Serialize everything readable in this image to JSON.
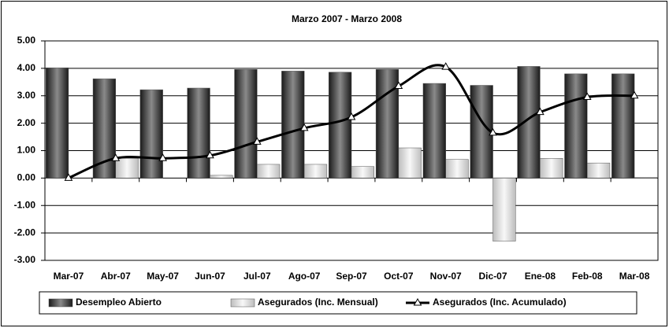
{
  "chart_data": {
    "type": "bar_line",
    "title": "Marzo 2007 - Marzo 2008",
    "categories": [
      "Mar-07",
      "Abr-07",
      "May-07",
      "Jun-07",
      "Jul-07",
      "Ago-07",
      "Sep-07",
      "Oct-07",
      "Nov-07",
      "Dic-07",
      "Ene-08",
      "Feb-08",
      "Mar-08"
    ],
    "series": [
      {
        "name": "Desempleo Abierto",
        "type": "bar",
        "color": "#3a3a3a",
        "values": [
          4.02,
          3.62,
          3.22,
          3.28,
          3.96,
          3.9,
          3.86,
          3.96,
          3.45,
          3.38,
          4.07,
          3.8,
          3.8
        ]
      },
      {
        "name": "Asegurados (Inc. Mensual)",
        "type": "bar",
        "color": "#e0e0e0",
        "values": [
          0,
          0.72,
          0,
          0.1,
          0.5,
          0.5,
          0.42,
          1.1,
          0.68,
          -2.3,
          0.72,
          0.55,
          0.02
        ]
      },
      {
        "name": "Asegurados (Inc. Acumulado)",
        "type": "line",
        "color": "#000000",
        "values": [
          0,
          0.72,
          0.72,
          0.82,
          1.32,
          1.82,
          2.22,
          3.35,
          4.05,
          1.65,
          2.4,
          2.95,
          3.0
        ]
      }
    ],
    "ylim": [
      -3,
      5
    ],
    "yticks": [
      {
        "value": -3,
        "label": "-3.00"
      },
      {
        "value": -2,
        "label": "-2.00"
      },
      {
        "value": -1,
        "label": "-1.00"
      },
      {
        "value": 0,
        "label": "0.00"
      },
      {
        "value": 1,
        "label": "1.00"
      },
      {
        "value": 2,
        "label": "2.00"
      },
      {
        "value": 3,
        "label": "3.00"
      },
      {
        "value": 4,
        "label": "4.00"
      },
      {
        "value": 5,
        "label": "5.00"
      }
    ],
    "grid": true,
    "legend": "bottom"
  }
}
